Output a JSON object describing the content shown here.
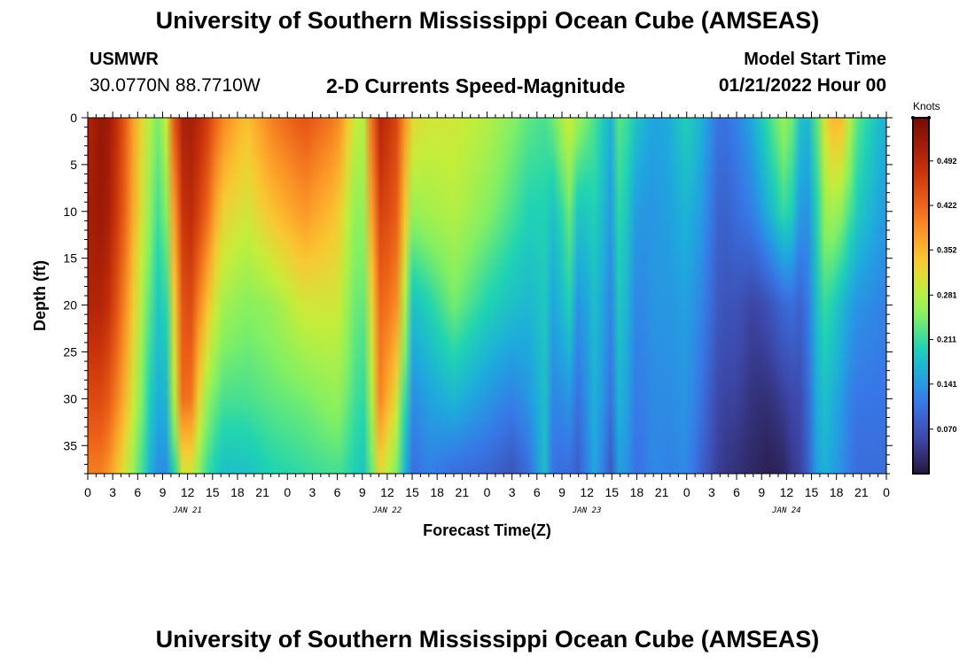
{
  "header": {
    "title": "University of Southern Mississippi Ocean Cube (AMSEAS)",
    "station_id": "USMWR",
    "station_coords": "30.0770N  88.7710W",
    "chart_title": "2-D Currents Speed-Magnitude",
    "model_label": "Model Start Time",
    "model_date": "01/21/2022 Hour 00"
  },
  "footer": {
    "title": "University of Southern Mississippi Ocean Cube (AMSEAS)"
  },
  "chart_data": {
    "type": "heatmap",
    "title": "2-D Currents Speed-Magnitude",
    "xlabel": "Forecast Time(Z)",
    "ylabel": "Depth (ft)",
    "x_range_hours": [
      0,
      96
    ],
    "y_range_ft": [
      0,
      38
    ],
    "y_inverted": true,
    "x_ticks": [
      "0",
      "3",
      "6",
      "9",
      "12",
      "15",
      "18",
      "21",
      "0",
      "3",
      "6",
      "9",
      "12",
      "15",
      "18",
      "21",
      "0",
      "3",
      "6",
      "9",
      "12",
      "15",
      "18",
      "21",
      "0",
      "3",
      "6",
      "9",
      "12",
      "15",
      "18",
      "21",
      "0"
    ],
    "y_ticks": [
      {
        "value": 0,
        "label": "0"
      },
      {
        "value": 5,
        "label": "5"
      },
      {
        "value": 10,
        "label": "10"
      },
      {
        "value": 15,
        "label": "15"
      },
      {
        "value": 20,
        "label": "20"
      },
      {
        "value": 25,
        "label": "25"
      },
      {
        "value": 30,
        "label": "30"
      },
      {
        "value": 35,
        "label": "35"
      }
    ],
    "day_labels": [
      {
        "hour": 12,
        "label": "JAN 21"
      },
      {
        "hour": 36,
        "label": "JAN 22"
      },
      {
        "hour": 60,
        "label": "JAN 23"
      },
      {
        "hour": 84,
        "label": "JAN 24"
      }
    ],
    "colorbar": {
      "unit": "Knots",
      "min": 0.0,
      "max": 0.56,
      "ticks": [
        {
          "value": 0.07,
          "label": "0.070"
        },
        {
          "value": 0.141,
          "label": "0.141"
        },
        {
          "value": 0.211,
          "label": "0.211"
        },
        {
          "value": 0.281,
          "label": "0.281"
        },
        {
          "value": 0.352,
          "label": "0.352"
        },
        {
          "value": 0.422,
          "label": "0.422"
        },
        {
          "value": 0.492,
          "label": "0.492"
        }
      ]
    },
    "speed_profiles_knots": {
      "depths_ft": [
        0,
        10,
        20,
        30,
        38
      ],
      "columns": [
        {
          "hour": 0,
          "v": [
            0.5,
            0.51,
            0.5,
            0.45,
            0.4
          ]
        },
        {
          "hour": 2,
          "v": [
            0.54,
            0.53,
            0.5,
            0.45,
            0.4
          ]
        },
        {
          "hour": 4,
          "v": [
            0.46,
            0.45,
            0.42,
            0.38,
            0.32
          ]
        },
        {
          "hour": 6,
          "v": [
            0.34,
            0.33,
            0.3,
            0.27,
            0.24
          ]
        },
        {
          "hour": 8,
          "v": [
            0.26,
            0.23,
            0.2,
            0.17,
            0.14
          ]
        },
        {
          "hour": 9,
          "v": [
            0.22,
            0.2,
            0.17,
            0.15,
            0.12
          ]
        },
        {
          "hour": 10,
          "v": [
            0.4,
            0.32,
            0.26,
            0.2,
            0.15
          ]
        },
        {
          "hour": 11,
          "v": [
            0.5,
            0.46,
            0.42,
            0.4,
            0.28
          ]
        },
        {
          "hour": 12,
          "v": [
            0.52,
            0.5,
            0.47,
            0.44,
            0.32
          ]
        },
        {
          "hour": 14,
          "v": [
            0.48,
            0.44,
            0.36,
            0.27,
            0.22
          ]
        },
        {
          "hour": 16,
          "v": [
            0.4,
            0.33,
            0.27,
            0.22,
            0.18
          ]
        },
        {
          "hour": 19,
          "v": [
            0.34,
            0.3,
            0.25,
            0.22,
            0.18
          ]
        },
        {
          "hour": 22,
          "v": [
            0.4,
            0.34,
            0.26,
            0.23,
            0.2
          ]
        },
        {
          "hour": 26,
          "v": [
            0.44,
            0.38,
            0.3,
            0.24,
            0.21
          ]
        },
        {
          "hour": 30,
          "v": [
            0.4,
            0.34,
            0.3,
            0.26,
            0.22
          ]
        },
        {
          "hour": 32,
          "v": [
            0.3,
            0.26,
            0.24,
            0.22,
            0.2
          ]
        },
        {
          "hour": 33,
          "v": [
            0.26,
            0.24,
            0.22,
            0.2,
            0.18
          ]
        },
        {
          "hour": 34,
          "v": [
            0.4,
            0.36,
            0.3,
            0.26,
            0.22
          ]
        },
        {
          "hour": 35,
          "v": [
            0.5,
            0.46,
            0.42,
            0.4,
            0.32
          ]
        },
        {
          "hour": 37,
          "v": [
            0.46,
            0.44,
            0.4,
            0.32,
            0.25
          ]
        },
        {
          "hour": 39,
          "v": [
            0.32,
            0.26,
            0.18,
            0.13,
            0.1
          ]
        },
        {
          "hour": 41,
          "v": [
            0.3,
            0.27,
            0.2,
            0.15,
            0.12
          ]
        },
        {
          "hour": 44,
          "v": [
            0.3,
            0.28,
            0.24,
            0.17,
            0.1
          ]
        },
        {
          "hour": 48,
          "v": [
            0.28,
            0.25,
            0.2,
            0.14,
            0.09
          ]
        },
        {
          "hour": 51,
          "v": [
            0.25,
            0.22,
            0.18,
            0.12,
            0.07
          ]
        },
        {
          "hour": 53,
          "v": [
            0.23,
            0.2,
            0.17,
            0.14,
            0.1
          ]
        },
        {
          "hour": 55,
          "v": [
            0.22,
            0.2,
            0.19,
            0.18,
            0.18
          ]
        },
        {
          "hour": 56,
          "v": [
            0.24,
            0.18,
            0.15,
            0.12,
            0.1
          ]
        },
        {
          "hour": 58,
          "v": [
            0.3,
            0.24,
            0.2,
            0.14,
            0.1
          ]
        },
        {
          "hour": 59,
          "v": [
            0.26,
            0.18,
            0.13,
            0.1,
            0.08
          ]
        },
        {
          "hour": 61,
          "v": [
            0.22,
            0.2,
            0.18,
            0.17,
            0.16
          ]
        },
        {
          "hour": 63,
          "v": [
            0.16,
            0.14,
            0.12,
            0.1,
            0.07
          ]
        },
        {
          "hour": 64,
          "v": [
            0.24,
            0.22,
            0.2,
            0.18,
            0.16
          ]
        },
        {
          "hour": 66,
          "v": [
            0.18,
            0.14,
            0.12,
            0.11,
            0.1
          ]
        },
        {
          "hour": 68,
          "v": [
            0.15,
            0.14,
            0.14,
            0.13,
            0.13
          ]
        },
        {
          "hour": 70,
          "v": [
            0.16,
            0.15,
            0.14,
            0.13,
            0.12
          ]
        },
        {
          "hour": 72,
          "v": [
            0.2,
            0.17,
            0.15,
            0.14,
            0.13
          ]
        },
        {
          "hour": 74,
          "v": [
            0.16,
            0.14,
            0.12,
            0.1,
            0.08
          ]
        },
        {
          "hour": 76,
          "v": [
            0.1,
            0.08,
            0.07,
            0.05,
            0.04
          ]
        },
        {
          "hour": 78,
          "v": [
            0.12,
            0.1,
            0.07,
            0.05,
            0.03
          ]
        },
        {
          "hour": 80,
          "v": [
            0.16,
            0.12,
            0.05,
            0.03,
            0.02
          ]
        },
        {
          "hour": 82,
          "v": [
            0.22,
            0.17,
            0.07,
            0.03,
            0.01
          ]
        },
        {
          "hour": 84,
          "v": [
            0.27,
            0.22,
            0.1,
            0.05,
            0.02
          ]
        },
        {
          "hour": 85,
          "v": [
            0.22,
            0.18,
            0.1,
            0.06,
            0.05
          ]
        },
        {
          "hour": 86,
          "v": [
            0.16,
            0.12,
            0.08,
            0.06,
            0.05
          ]
        },
        {
          "hour": 87,
          "v": [
            0.18,
            0.15,
            0.14,
            0.12,
            0.11
          ]
        },
        {
          "hour": 88,
          "v": [
            0.26,
            0.23,
            0.2,
            0.18,
            0.17
          ]
        },
        {
          "hour": 89,
          "v": [
            0.34,
            0.28,
            0.22,
            0.18,
            0.16
          ]
        },
        {
          "hour": 90,
          "v": [
            0.36,
            0.26,
            0.18,
            0.15,
            0.14
          ]
        },
        {
          "hour": 91,
          "v": [
            0.34,
            0.25,
            0.17,
            0.14,
            0.13
          ]
        },
        {
          "hour": 92,
          "v": [
            0.24,
            0.2,
            0.14,
            0.11,
            0.1
          ]
        },
        {
          "hour": 94,
          "v": [
            0.2,
            0.17,
            0.13,
            0.11,
            0.1
          ]
        },
        {
          "hour": 96,
          "v": [
            0.16,
            0.14,
            0.12,
            0.11,
            0.1
          ]
        }
      ]
    }
  }
}
